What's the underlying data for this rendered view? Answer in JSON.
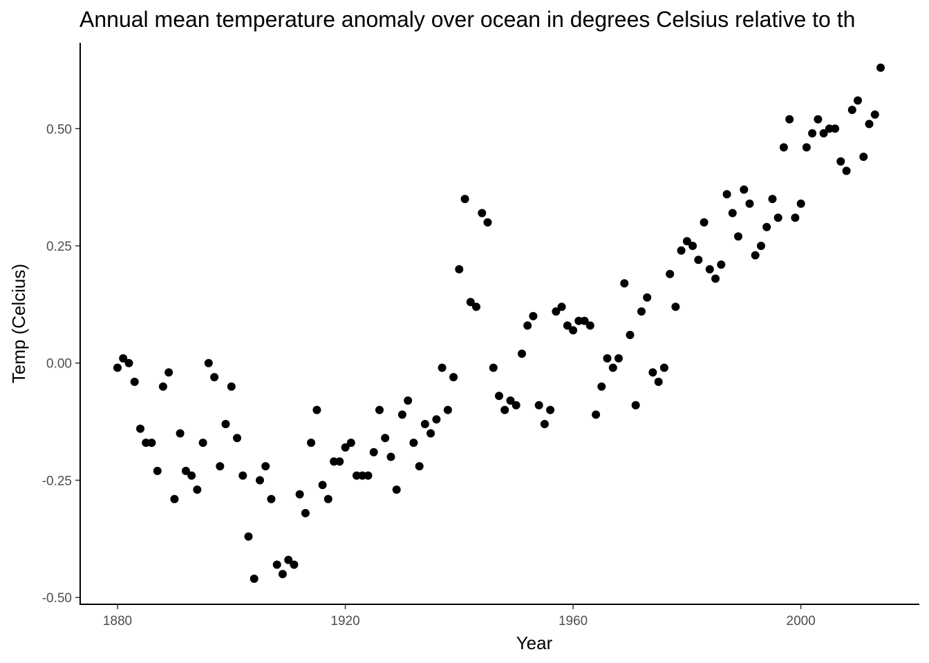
{
  "chart_data": {
    "type": "scatter",
    "title": "Annual mean temperature anomaly over ocean in degrees Celsius relative to th",
    "xlabel": "Year",
    "ylabel": "Temp (Celcius)",
    "xlim": [
      1880,
      2014
    ],
    "ylim": [
      -0.46,
      0.63
    ],
    "grid": false,
    "x_ticks": [
      1880,
      1920,
      1960,
      2000
    ],
    "x_tick_labels": [
      "1880",
      "1920",
      "1960",
      "2000"
    ],
    "y_ticks": [
      -0.5,
      -0.25,
      0.0,
      0.25,
      0.5
    ],
    "y_tick_labels": [
      "-0.50",
      "-0.25",
      "0.00",
      "0.25",
      "0.50"
    ],
    "point_color": "#000000",
    "points": [
      [
        1880,
        -0.01
      ],
      [
        1881,
        0.01
      ],
      [
        1882,
        0.0
      ],
      [
        1883,
        -0.04
      ],
      [
        1884,
        -0.14
      ],
      [
        1885,
        -0.17
      ],
      [
        1886,
        -0.17
      ],
      [
        1887,
        -0.23
      ],
      [
        1888,
        -0.05
      ],
      [
        1889,
        -0.02
      ],
      [
        1890,
        -0.29
      ],
      [
        1891,
        -0.15
      ],
      [
        1892,
        -0.23
      ],
      [
        1893,
        -0.24
      ],
      [
        1894,
        -0.27
      ],
      [
        1895,
        -0.17
      ],
      [
        1896,
        0.0
      ],
      [
        1897,
        -0.03
      ],
      [
        1898,
        -0.22
      ],
      [
        1899,
        -0.13
      ],
      [
        1900,
        -0.05
      ],
      [
        1901,
        -0.16
      ],
      [
        1902,
        -0.24
      ],
      [
        1903,
        -0.37
      ],
      [
        1904,
        -0.46
      ],
      [
        1905,
        -0.25
      ],
      [
        1906,
        -0.22
      ],
      [
        1907,
        -0.29
      ],
      [
        1908,
        -0.43
      ],
      [
        1909,
        -0.45
      ],
      [
        1910,
        -0.42
      ],
      [
        1911,
        -0.43
      ],
      [
        1912,
        -0.28
      ],
      [
        1913,
        -0.32
      ],
      [
        1914,
        -0.17
      ],
      [
        1915,
        -0.1
      ],
      [
        1916,
        -0.26
      ],
      [
        1917,
        -0.29
      ],
      [
        1918,
        -0.21
      ],
      [
        1919,
        -0.21
      ],
      [
        1920,
        -0.18
      ],
      [
        1921,
        -0.17
      ],
      [
        1922,
        -0.24
      ],
      [
        1923,
        -0.24
      ],
      [
        1924,
        -0.24
      ],
      [
        1925,
        -0.19
      ],
      [
        1926,
        -0.1
      ],
      [
        1927,
        -0.16
      ],
      [
        1928,
        -0.2
      ],
      [
        1929,
        -0.27
      ],
      [
        1930,
        -0.11
      ],
      [
        1931,
        -0.08
      ],
      [
        1932,
        -0.17
      ],
      [
        1933,
        -0.22
      ],
      [
        1934,
        -0.13
      ],
      [
        1935,
        -0.15
      ],
      [
        1936,
        -0.12
      ],
      [
        1937,
        -0.01
      ],
      [
        1938,
        -0.1
      ],
      [
        1939,
        -0.03
      ],
      [
        1940,
        0.2
      ],
      [
        1941,
        0.35
      ],
      [
        1942,
        0.13
      ],
      [
        1943,
        0.12
      ],
      [
        1944,
        0.32
      ],
      [
        1945,
        0.3
      ],
      [
        1946,
        -0.01
      ],
      [
        1947,
        -0.07
      ],
      [
        1948,
        -0.1
      ],
      [
        1949,
        -0.08
      ],
      [
        1950,
        -0.09
      ],
      [
        1951,
        0.02
      ],
      [
        1952,
        0.08
      ],
      [
        1953,
        0.1
      ],
      [
        1954,
        -0.09
      ],
      [
        1955,
        -0.13
      ],
      [
        1956,
        -0.1
      ],
      [
        1957,
        0.11
      ],
      [
        1958,
        0.12
      ],
      [
        1959,
        0.08
      ],
      [
        1960,
        0.07
      ],
      [
        1961,
        0.09
      ],
      [
        1962,
        0.09
      ],
      [
        1963,
        0.08
      ],
      [
        1964,
        -0.11
      ],
      [
        1965,
        -0.05
      ],
      [
        1966,
        0.01
      ],
      [
        1967,
        -0.01
      ],
      [
        1968,
        0.01
      ],
      [
        1969,
        0.17
      ],
      [
        1970,
        0.06
      ],
      [
        1971,
        -0.09
      ],
      [
        1972,
        0.11
      ],
      [
        1973,
        0.14
      ],
      [
        1974,
        -0.02
      ],
      [
        1975,
        -0.04
      ],
      [
        1976,
        -0.01
      ],
      [
        1977,
        0.19
      ],
      [
        1978,
        0.12
      ],
      [
        1979,
        0.24
      ],
      [
        1980,
        0.26
      ],
      [
        1981,
        0.25
      ],
      [
        1982,
        0.22
      ],
      [
        1983,
        0.3
      ],
      [
        1984,
        0.2
      ],
      [
        1985,
        0.18
      ],
      [
        1986,
        0.21
      ],
      [
        1987,
        0.36
      ],
      [
        1988,
        0.32
      ],
      [
        1989,
        0.27
      ],
      [
        1990,
        0.37
      ],
      [
        1991,
        0.34
      ],
      [
        1992,
        0.23
      ],
      [
        1993,
        0.25
      ],
      [
        1994,
        0.29
      ],
      [
        1995,
        0.35
      ],
      [
        1996,
        0.31
      ],
      [
        1997,
        0.46
      ],
      [
        1998,
        0.52
      ],
      [
        1999,
        0.31
      ],
      [
        2000,
        0.34
      ],
      [
        2001,
        0.46
      ],
      [
        2002,
        0.49
      ],
      [
        2003,
        0.52
      ],
      [
        2004,
        0.49
      ],
      [
        2005,
        0.5
      ],
      [
        2006,
        0.5
      ],
      [
        2007,
        0.43
      ],
      [
        2008,
        0.41
      ],
      [
        2009,
        0.54
      ],
      [
        2010,
        0.56
      ],
      [
        2011,
        0.44
      ],
      [
        2012,
        0.51
      ],
      [
        2013,
        0.53
      ],
      [
        2014,
        0.63
      ]
    ]
  }
}
